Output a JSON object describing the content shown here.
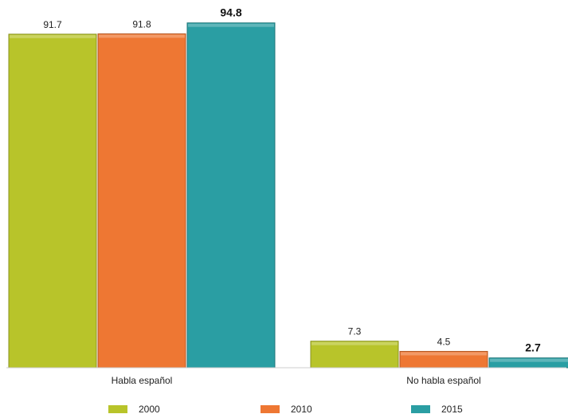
{
  "chart_data": {
    "type": "bar",
    "categories": [
      "Habla español",
      "No habla español"
    ],
    "series": [
      {
        "name": "2000",
        "values": [
          91.7,
          7.3
        ],
        "color": "#b8c42a",
        "labels": [
          "91.7",
          "7.3"
        ],
        "bold": false
      },
      {
        "name": "2010",
        "values": [
          91.8,
          4.5
        ],
        "color": "#ee7733",
        "labels": [
          "91.8",
          "4.5"
        ],
        "bold": false
      },
      {
        "name": "2015",
        "values": [
          94.8,
          2.7
        ],
        "color": "#2a9ea3",
        "labels": [
          "94.8",
          "2.7"
        ],
        "bold": true
      }
    ],
    "title": "",
    "xlabel": "",
    "ylabel": "",
    "ylim": [
      0,
      100
    ],
    "grid": false,
    "legend_position": "bottom"
  }
}
